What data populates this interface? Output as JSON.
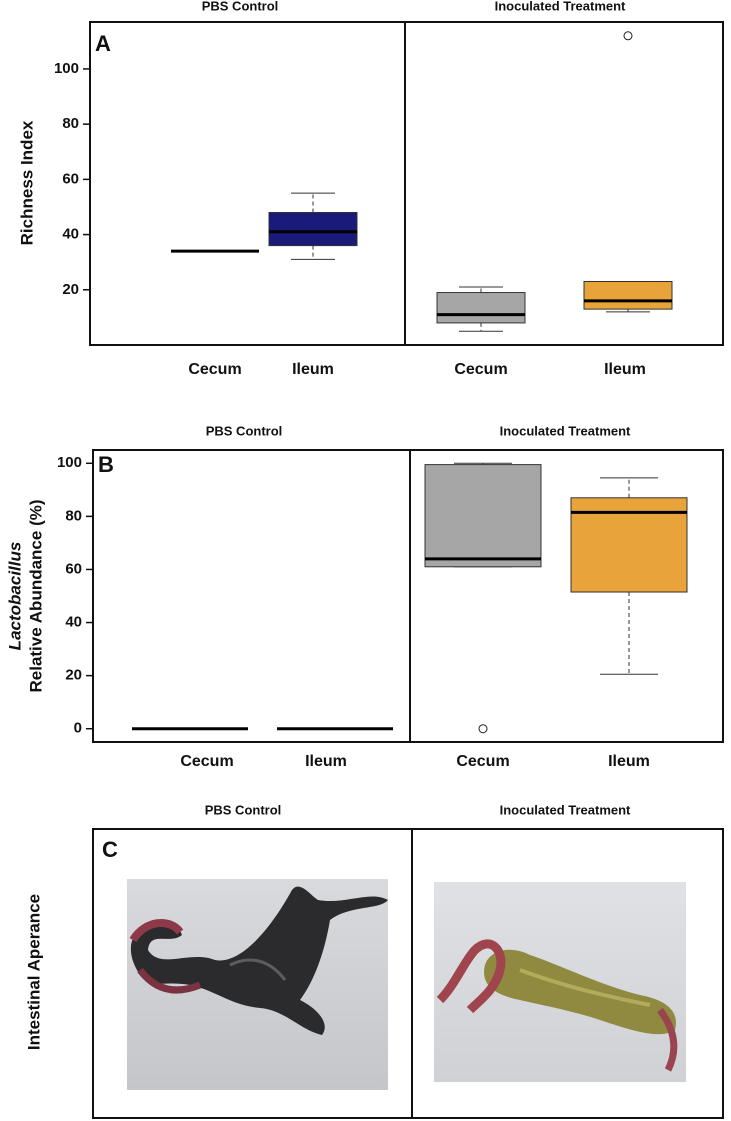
{
  "chart_data": [
    {
      "type": "box",
      "panel_label": "A",
      "y_label": [
        "Richness Index"
      ],
      "ylim": [
        0,
        117
      ],
      "yticks": [
        20,
        40,
        60,
        80,
        100
      ],
      "facets": [
        {
          "title": "PBS Control",
          "categories": [
            "Cecum",
            "Ileum"
          ],
          "boxes": [
            {
              "color": "#1a1a7a",
              "min": 34,
              "q1": 34,
              "median": 34,
              "q3": 34,
              "max": 34
            },
            {
              "color": "#1a1a7a",
              "min": 31,
              "q1": 36,
              "median": 41,
              "q3": 48,
              "max": 55
            }
          ]
        },
        {
          "title": "Inoculated Treatment",
          "categories": [
            "Cecum",
            "Ileum"
          ],
          "boxes": [
            {
              "color": "#a6a6a6",
              "min": 5,
              "q1": 8,
              "median": 11,
              "q3": 19,
              "max": 21
            },
            {
              "color": "#e8a33a",
              "min": 12,
              "q1": 13,
              "median": 16,
              "q3": 23,
              "max": 23,
              "outliers": [
                112
              ]
            }
          ]
        }
      ]
    },
    {
      "type": "box",
      "panel_label": "B",
      "y_label": [
        "Lactobacillus",
        "Relative Abundance (%)"
      ],
      "ylim": [
        -5,
        105
      ],
      "yticks": [
        0,
        20,
        40,
        60,
        80,
        100
      ],
      "facets": [
        {
          "title": "PBS Control",
          "categories": [
            "Cecum",
            "Ileum"
          ],
          "boxes": [
            {
              "color": "#1a1a7a",
              "min": 0,
              "q1": 0,
              "median": 0,
              "q3": 0,
              "max": 0
            },
            {
              "color": "#1a1a7a",
              "min": 0,
              "q1": 0,
              "median": 0,
              "q3": 0,
              "max": 0
            }
          ]
        },
        {
          "title": "Inoculated Treatment",
          "categories": [
            "Cecum",
            "Ileum"
          ],
          "boxes": [
            {
              "color": "#a6a6a6",
              "min": 61,
              "q1": 61,
              "median": 64,
              "q3": 99.5,
              "max": 100,
              "outliers": [
                0
              ]
            },
            {
              "color": "#e8a33a",
              "min": 20.5,
              "q1": 51.5,
              "median": 81.5,
              "q3": 87,
              "max": 94.5
            }
          ]
        }
      ]
    }
  ],
  "panel_c": {
    "panel_label": "C",
    "y_label": "Intestinal Aperance",
    "titles": [
      "PBS Control",
      "Inoculated Treatment"
    ]
  }
}
